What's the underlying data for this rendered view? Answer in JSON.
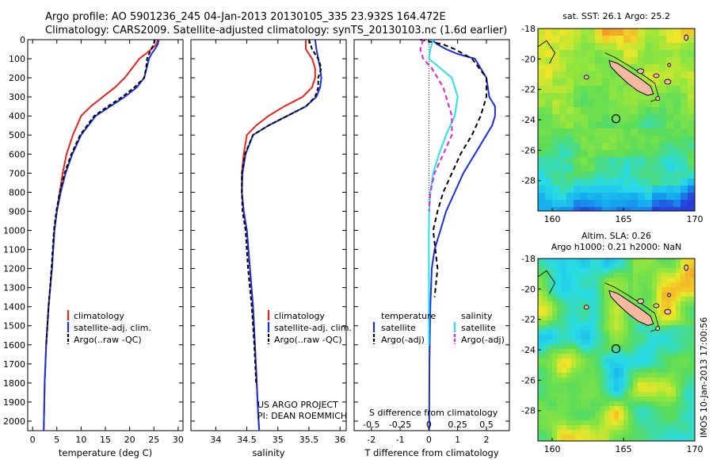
{
  "header": {
    "line1": "Argo profile: AO 5901236_245 04-Jan-2013 20130105_335 23.932S 164.472E",
    "line2": "Climatology: CARS2009. Satellite-adjusted climatology: synTS_20130103.nc (1.6d earlier)"
  },
  "credits": {
    "project": "US ARGO PROJECT",
    "pi": "PI: DEAN ROEMMICH",
    "imos": "IMOS 10-Jan-2013 17:00:56"
  },
  "colors": {
    "climatology": "#e8221c",
    "satellite": "#1a2fe0",
    "argo": "#000000",
    "salinity_sat": "#22e4ec",
    "salinity_argo": "#e51ee0",
    "land": "#f5b9a0"
  },
  "legend_profile": {
    "climatology": "climatology",
    "satellite": "satellite-adj. clim.",
    "argo": "Argo(..raw -QC)"
  },
  "legend_diff": {
    "temperature": "temperature",
    "salinity": "salinity",
    "satellite": "satellite",
    "argo": "Argo(-adj)"
  },
  "maps": {
    "sst": {
      "title": "sat. SST: 26.1  Argo: 25.2",
      "yticks": [
        "-18",
        "-20",
        "-22",
        "-24",
        "-26",
        "-28"
      ],
      "xticks": [
        "160",
        "165",
        "170"
      ],
      "lon_range": [
        159,
        170
      ],
      "lat_range": [
        -30,
        -18
      ],
      "float_position": [
        164.472,
        -23.932
      ]
    },
    "sla": {
      "title_line1": "Altim. SLA: 0.26",
      "title_line2": "Argo h1000: 0.21 h2000: NaN",
      "yticks": [
        "-18",
        "-20",
        "-22",
        "-24",
        "-26",
        "-28"
      ],
      "xticks": [
        "160",
        "165",
        "170"
      ],
      "lon_range": [
        159,
        170
      ],
      "lat_range": [
        -30,
        -18
      ],
      "float_position": [
        164.472,
        -23.932
      ]
    }
  },
  "chart_data": [
    {
      "type": "line",
      "xlabel": "temperature (deg C)",
      "ylabel": "",
      "xlim": [
        -1,
        31
      ],
      "ylim": [
        2050,
        0
      ],
      "xticks": [
        "0",
        "5",
        "10",
        "15",
        "20",
        "25",
        "30"
      ],
      "yticks": [
        "0",
        "100",
        "200",
        "300",
        "400",
        "500",
        "600",
        "700",
        "800",
        "900",
        "1000",
        "1100",
        "1200",
        "1300",
        "1400",
        "1500",
        "1600",
        "1700",
        "1800",
        "1900",
        "2000"
      ],
      "series": [
        {
          "name": "climatology",
          "x": [
            25.8,
            25.5,
            24.5,
            23.3,
            22,
            20.5,
            19,
            17,
            14.5,
            12,
            10,
            8.3,
            7,
            6.2,
            5.6,
            5,
            4.5,
            4,
            3.3,
            2.8,
            2.5,
            2.3
          ],
          "y": [
            0,
            25,
            50,
            75,
            100,
            150,
            200,
            250,
            300,
            350,
            400,
            500,
            600,
            700,
            800,
            900,
            1000,
            1200,
            1400,
            1600,
            1800,
            2050
          ]
        },
        {
          "name": "satellite-adj. clim.",
          "x": [
            26,
            25.8,
            25.2,
            24.5,
            24,
            23.5,
            23,
            21.5,
            19,
            16,
            13,
            10,
            8.2,
            6.8,
            5.8,
            5,
            4.5,
            4,
            3.3,
            2.8,
            2.5,
            2.3
          ],
          "y": [
            0,
            25,
            50,
            75,
            100,
            150,
            200,
            250,
            300,
            350,
            400,
            500,
            600,
            700,
            800,
            900,
            1000,
            1200,
            1400,
            1600,
            1800,
            2050
          ]
        },
        {
          "name": "Argo(..raw -QC)",
          "x": [
            25.2,
            25,
            24.4,
            24,
            23.6,
            23.4,
            23,
            21,
            18.5,
            15.5,
            12.7,
            9.8,
            8,
            6.6,
            5.6,
            4.9,
            4.4,
            3.9,
            3.3,
            2.8
          ],
          "y": [
            0,
            25,
            50,
            75,
            100,
            150,
            200,
            250,
            300,
            350,
            400,
            500,
            600,
            700,
            800,
            900,
            1000,
            1200,
            1400,
            1600
          ]
        }
      ]
    },
    {
      "type": "line",
      "xlabel": "salinity",
      "ylabel": "",
      "xlim": [
        33.6,
        36.1
      ],
      "ylim": [
        2050,
        0
      ],
      "xticks": [
        "34",
        "34.5",
        "35",
        "35.5",
        "36"
      ],
      "series": [
        {
          "name": "climatology",
          "x": [
            35.45,
            35.45,
            35.55,
            35.6,
            35.6,
            35.55,
            35.4,
            35.1,
            34.85,
            34.65,
            34.5,
            34.45,
            34.42,
            34.42,
            34.45,
            34.5,
            34.55,
            34.6,
            34.63,
            34.66,
            34.68,
            34.7
          ],
          "y": [
            0,
            50,
            100,
            150,
            200,
            250,
            300,
            350,
            400,
            450,
            500,
            600,
            700,
            800,
            900,
            1000,
            1200,
            1400,
            1600,
            1800,
            1950,
            2050
          ]
        },
        {
          "name": "satellite-adj. clim.",
          "x": [
            35.6,
            35.62,
            35.65,
            35.68,
            35.7,
            35.68,
            35.62,
            35.45,
            35.15,
            34.85,
            34.6,
            34.48,
            34.43,
            34.42,
            34.45,
            34.5,
            34.55,
            34.6,
            34.63,
            34.66,
            34.68,
            34.7
          ],
          "y": [
            0,
            50,
            100,
            150,
            200,
            250,
            300,
            350,
            400,
            450,
            500,
            600,
            700,
            800,
            900,
            1000,
            1200,
            1400,
            1600,
            1800,
            1950,
            2050
          ]
        },
        {
          "name": "Argo(..raw -QC)",
          "x": [
            35.5,
            35.55,
            35.65,
            35.7,
            35.65,
            35.65,
            35.6,
            35.45,
            35.15,
            34.85,
            34.6,
            34.47,
            34.42,
            34.42,
            34.43,
            34.48,
            34.52,
            34.58,
            34.62,
            34.65
          ],
          "y": [
            0,
            50,
            100,
            150,
            200,
            250,
            300,
            350,
            400,
            450,
            500,
            600,
            700,
            800,
            900,
            1000,
            1200,
            1400,
            1600,
            1800
          ]
        }
      ]
    },
    {
      "type": "line",
      "xlabel": "T difference from climatology",
      "xlabel_top": "S difference from climatology",
      "ylabel": "",
      "xlim": [
        -2.6,
        2.8
      ],
      "ylim": [
        2050,
        0
      ],
      "xticks": [
        "-2",
        "-1",
        "0",
        "1",
        "2"
      ],
      "xticks_salinity": [
        "-0.5",
        "-0.25",
        "0",
        "0.25",
        "0.5"
      ],
      "series": [
        {
          "name": "temperature satellite",
          "x": [
            0.1,
            0.3,
            0.6,
            1.0,
            1.6,
            2.0,
            2.1,
            2.3,
            2.3,
            2.2,
            2.0,
            1.6,
            1.2,
            0.9,
            0.6,
            0.4,
            0.2,
            0.1,
            0.05,
            0.02,
            0.01
          ],
          "y": [
            0,
            25,
            50,
            75,
            100,
            200,
            300,
            350,
            400,
            450,
            500,
            600,
            700,
            800,
            900,
            1000,
            1100,
            1200,
            1400,
            1700,
            2050
          ]
        },
        {
          "name": "temperature Argo(-adj)",
          "x": [
            -0.3,
            0.5,
            0.9,
            1.5,
            2.0,
            2.0,
            1.8,
            1.5,
            1.1,
            0.8,
            0.5,
            0.3,
            0.15,
            0.3,
            0.2
          ],
          "y": [
            0,
            25,
            50,
            100,
            200,
            300,
            400,
            500,
            600,
            700,
            800,
            900,
            1000,
            1200,
            1350
          ]
        },
        {
          "name": "salinity satellite",
          "x": [
            0.15,
            0.05,
            0,
            0.4,
            0.8,
            1.0,
            0.9,
            0.6,
            0.35,
            0.15,
            0.05,
            0.01,
            0,
            0,
            0
          ],
          "y": [
            0,
            50,
            100,
            150,
            200,
            300,
            400,
            500,
            600,
            700,
            800,
            900,
            1000,
            1300,
            1600
          ]
        },
        {
          "name": "salinity Argo(-adj)",
          "x": [
            -0.2,
            -0.3,
            -0.2,
            0.1,
            0.5,
            0.8,
            0.8,
            0.5,
            0.2,
            0.05,
            0
          ],
          "y": [
            0,
            50,
            100,
            150,
            250,
            400,
            500,
            600,
            700,
            800,
            900
          ]
        }
      ]
    }
  ]
}
